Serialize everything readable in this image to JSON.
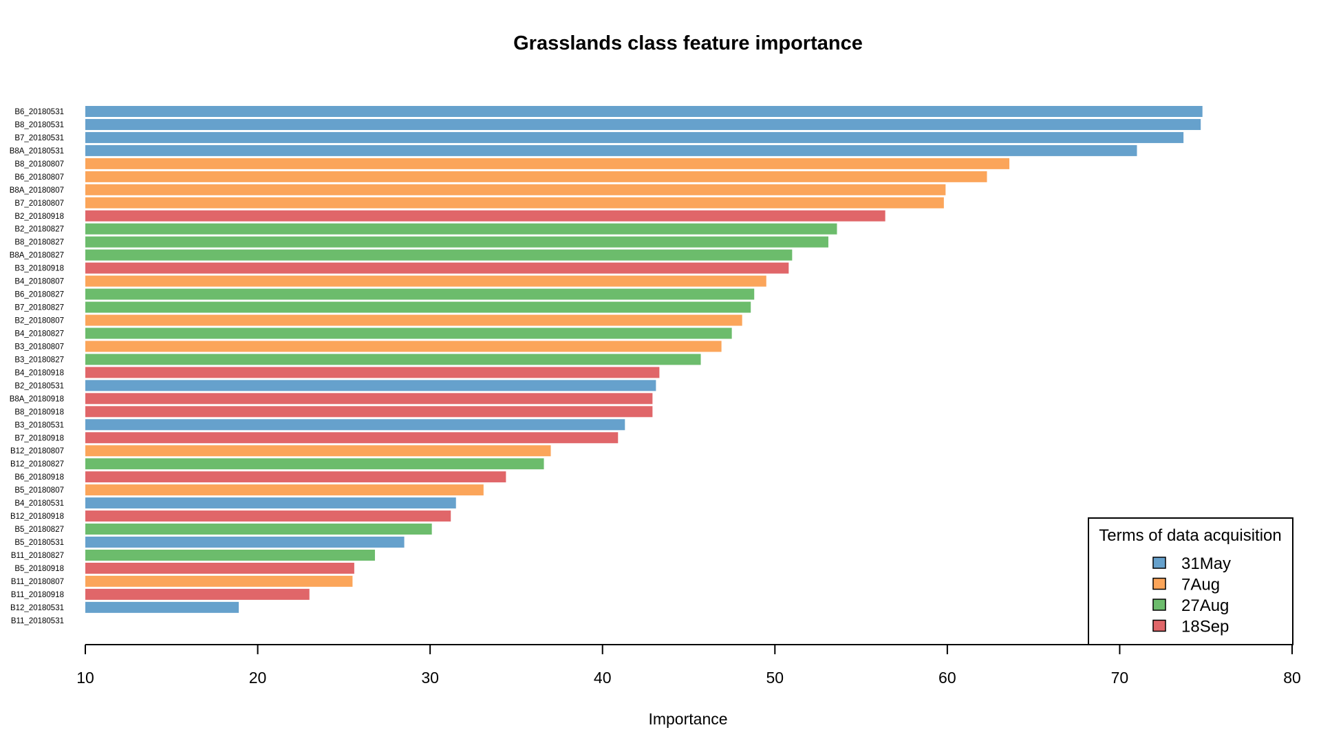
{
  "chart_data": {
    "type": "bar",
    "orientation": "horizontal",
    "title": "Grasslands class feature importance",
    "xlabel": "Importance",
    "ylabel": "",
    "xlim": [
      10,
      80
    ],
    "xticks": [
      "10",
      "20",
      "30",
      "40",
      "50",
      "60",
      "70",
      "80"
    ],
    "grid": false,
    "legend": {
      "title": "Terms of data acquisition",
      "position": "bottom-right",
      "entries": [
        {
          "key": "may",
          "label": "31May",
          "color": "#66A1CC"
        },
        {
          "key": "aug7",
          "label": "7Aug",
          "color": "#FBA55A"
        },
        {
          "key": "aug27",
          "label": "27Aug",
          "color": "#6CBC6C"
        },
        {
          "key": "sep",
          "label": "18Sep",
          "color": "#E06669"
        }
      ]
    },
    "bars": [
      {
        "label": "B6_20180531",
        "value": 74.8,
        "term": "may"
      },
      {
        "label": "B8_20180531",
        "value": 74.7,
        "term": "may"
      },
      {
        "label": "B7_20180531",
        "value": 73.7,
        "term": "may"
      },
      {
        "label": "B8A_20180531",
        "value": 71.0,
        "term": "may"
      },
      {
        "label": "B8_20180807",
        "value": 63.6,
        "term": "aug7"
      },
      {
        "label": "B6_20180807",
        "value": 62.3,
        "term": "aug7"
      },
      {
        "label": "B8A_20180807",
        "value": 59.9,
        "term": "aug7"
      },
      {
        "label": "B7_20180807",
        "value": 59.8,
        "term": "aug7"
      },
      {
        "label": "B2_20180918",
        "value": 56.4,
        "term": "sep"
      },
      {
        "label": "B2_20180827",
        "value": 53.6,
        "term": "aug27"
      },
      {
        "label": "B8_20180827",
        "value": 53.1,
        "term": "aug27"
      },
      {
        "label": "B8A_20180827",
        "value": 51.0,
        "term": "aug27"
      },
      {
        "label": "B3_20180918",
        "value": 50.8,
        "term": "sep"
      },
      {
        "label": "B4_20180807",
        "value": 49.5,
        "term": "aug7"
      },
      {
        "label": "B6_20180827",
        "value": 48.8,
        "term": "aug27"
      },
      {
        "label": "B7_20180827",
        "value": 48.6,
        "term": "aug27"
      },
      {
        "label": "B2_20180807",
        "value": 48.1,
        "term": "aug7"
      },
      {
        "label": "B4_20180827",
        "value": 47.5,
        "term": "aug27"
      },
      {
        "label": "B3_20180807",
        "value": 46.9,
        "term": "aug7"
      },
      {
        "label": "B3_20180827",
        "value": 45.7,
        "term": "aug27"
      },
      {
        "label": "B4_20180918",
        "value": 43.3,
        "term": "sep"
      },
      {
        "label": "B2_20180531",
        "value": 43.1,
        "term": "may"
      },
      {
        "label": "B8A_20180918",
        "value": 42.9,
        "term": "sep"
      },
      {
        "label": "B8_20180918",
        "value": 42.9,
        "term": "sep"
      },
      {
        "label": "B3_20180531",
        "value": 41.3,
        "term": "may"
      },
      {
        "label": "B7_20180918",
        "value": 40.9,
        "term": "sep"
      },
      {
        "label": "B12_20180807",
        "value": 37.0,
        "term": "aug7"
      },
      {
        "label": "B12_20180827",
        "value": 36.6,
        "term": "aug27"
      },
      {
        "label": "B6_20180918",
        "value": 34.4,
        "term": "sep"
      },
      {
        "label": "B5_20180807",
        "value": 33.1,
        "term": "aug7"
      },
      {
        "label": "B4_20180531",
        "value": 31.5,
        "term": "may"
      },
      {
        "label": "B12_20180918",
        "value": 31.2,
        "term": "sep"
      },
      {
        "label": "B5_20180827",
        "value": 30.1,
        "term": "aug27"
      },
      {
        "label": "B5_20180531",
        "value": 28.5,
        "term": "may"
      },
      {
        "label": "B11_20180827",
        "value": 26.8,
        "term": "aug27"
      },
      {
        "label": "B5_20180918",
        "value": 25.6,
        "term": "sep"
      },
      {
        "label": "B11_20180807",
        "value": 25.5,
        "term": "aug7"
      },
      {
        "label": "B11_20180918",
        "value": 23.0,
        "term": "sep"
      },
      {
        "label": "B12_20180531",
        "value": 18.9,
        "term": "may"
      },
      {
        "label": "B11_20180531",
        "value": 10.0,
        "term": "may"
      }
    ]
  }
}
